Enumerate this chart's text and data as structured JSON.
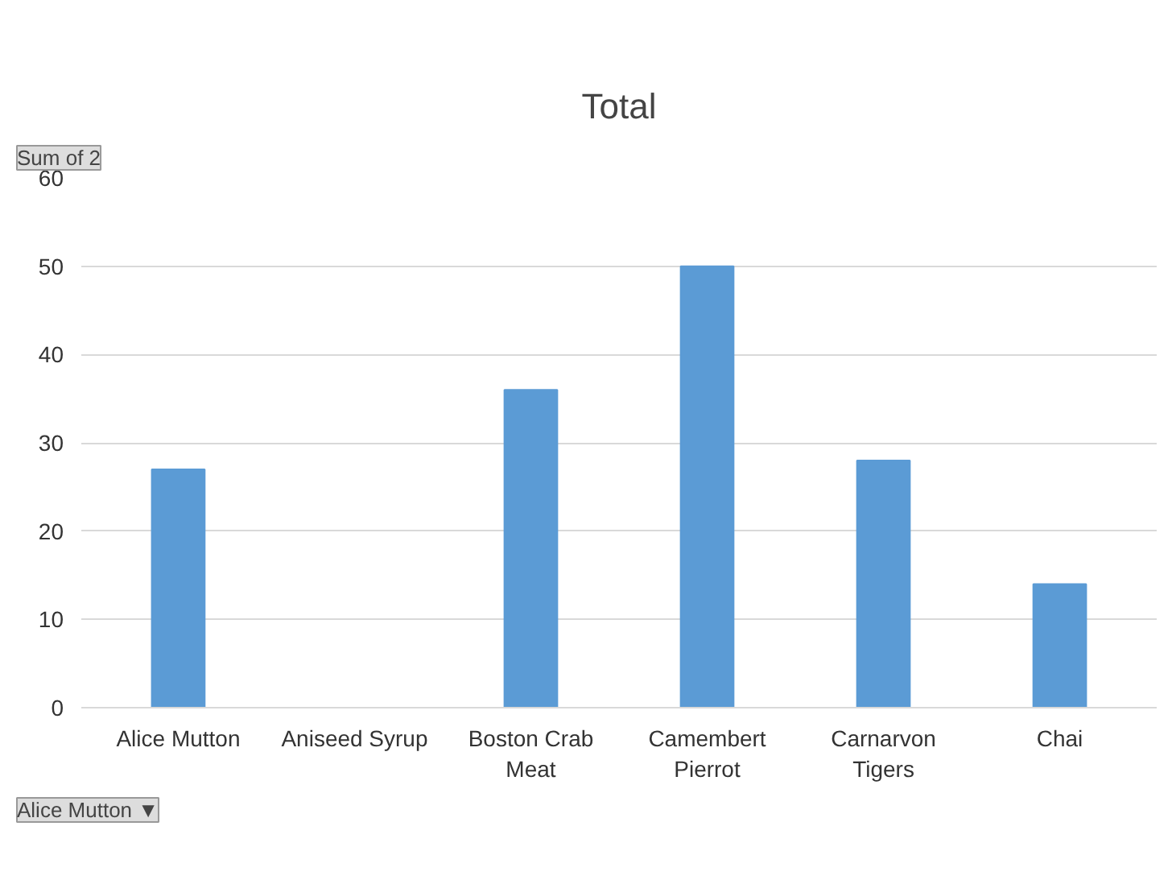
{
  "chart_data": {
    "type": "bar",
    "title": "Total",
    "categories": [
      "Alice Mutton",
      "Aniseed Syrup",
      "Boston Crab Meat",
      "Camembert Pierrot",
      "Carnarvon Tigers",
      "Chai"
    ],
    "values": [
      27,
      null,
      36,
      50,
      28,
      14
    ],
    "color": "#5b9bd5",
    "ylim": [
      0,
      60
    ],
    "yticks": [
      0,
      10,
      20,
      30,
      40,
      50,
      60
    ],
    "grid": "y",
    "annotations": [
      "Sum of 2",
      "Alice Mutton ▼"
    ]
  }
}
